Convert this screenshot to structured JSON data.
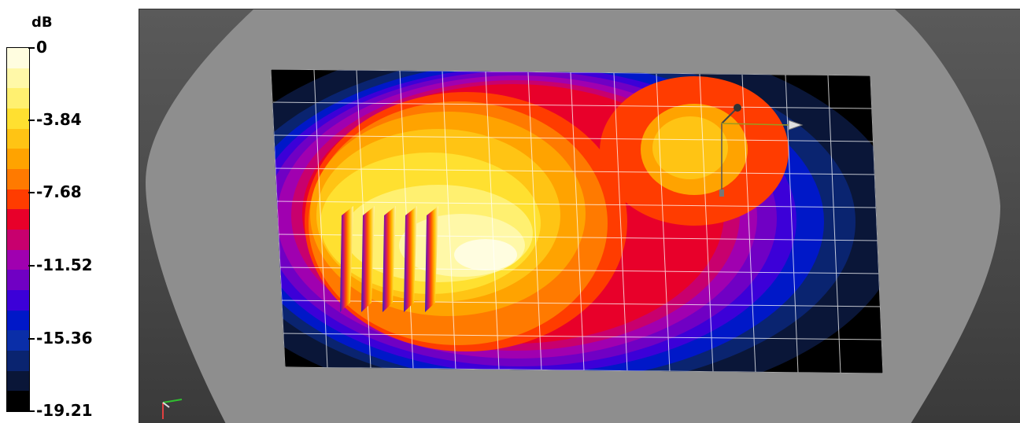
{
  "legend": {
    "unit": "dB",
    "ticks": [
      "0",
      "-3.84",
      "-7.68",
      "-11.52",
      "-15.36",
      "-19.21"
    ],
    "colors": [
      "#fffde0",
      "#fff8a8",
      "#fff070",
      "#ffe030",
      "#ffc414",
      "#ffa300",
      "#ff7a00",
      "#ff3c00",
      "#e8002a",
      "#c8006e",
      "#a000b0",
      "#7000c4",
      "#3c00d8",
      "#0018c8",
      "#0a2ea8",
      "#0a2470",
      "#0a1638",
      "#000000"
    ]
  },
  "viewport": {
    "background_colors": [
      "#4a4a4a",
      "#8e8e8e"
    ],
    "grid_color": "#ffffff",
    "axes": [
      "x-axis",
      "y-axis",
      "z-axis"
    ]
  }
}
